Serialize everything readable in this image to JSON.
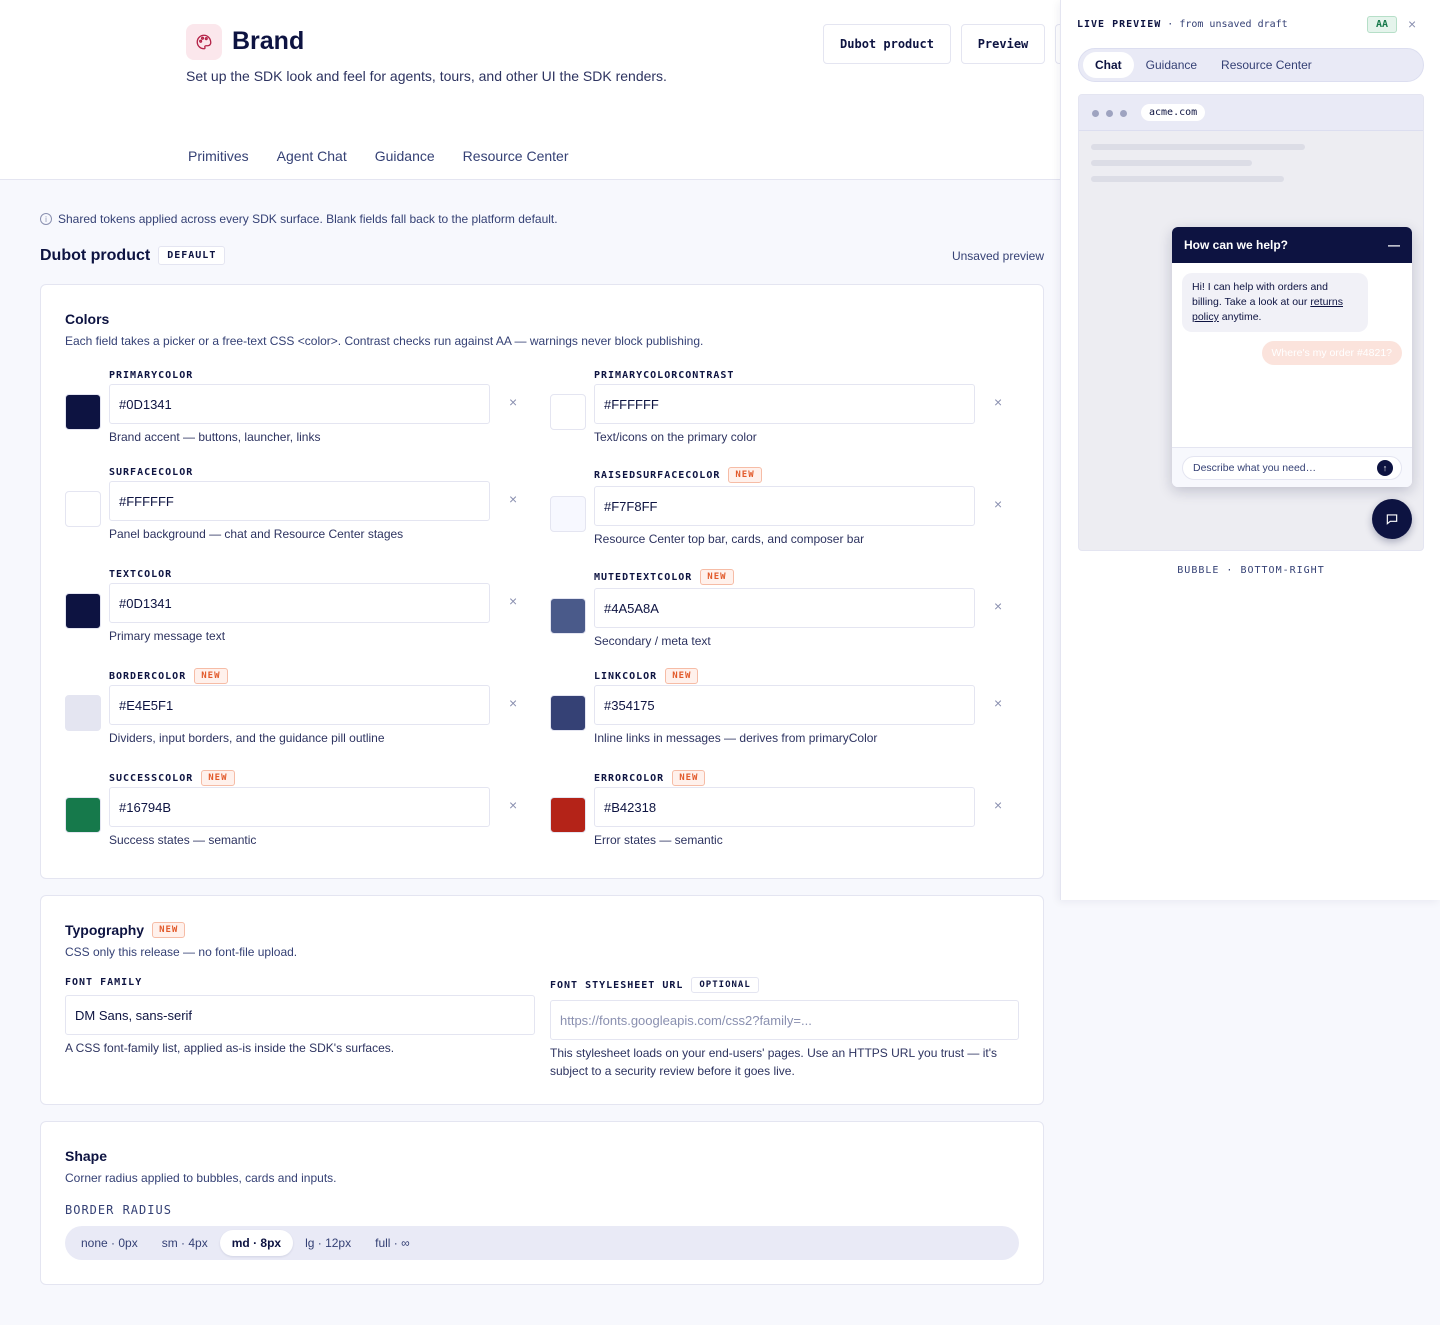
{
  "header": {
    "title": "Brand",
    "subtitle": "Set up the SDK look and feel for agents, tours, and other UI the SDK renders.",
    "buttons": [
      "Dubot product",
      "Preview"
    ],
    "icon": "palette-icon"
  },
  "tabs": [
    {
      "label": "Primitives",
      "active": true
    },
    {
      "label": "Agent Chat",
      "active": false
    },
    {
      "label": "Guidance",
      "active": false
    },
    {
      "label": "Resource Center",
      "active": false
    }
  ],
  "info_text": "Shared tokens applied across every SDK surface. Blank fields fall back to the platform default.",
  "section": {
    "name": "Dubot product",
    "badge": "DEFAULT",
    "status": "Unsaved preview"
  },
  "colors": {
    "title": "Colors",
    "subtitle": "Each field takes a picker or a free-text CSS <color>. Contrast checks run against AA — warnings never block publishing.",
    "new_label": "NEW",
    "clear_symbol": "×",
    "fields": [
      {
        "label": "PRIMARYCOLOR",
        "value": "#0D1341",
        "swatch": "#0D1341",
        "help": "Brand accent — buttons, launcher, links",
        "new": false
      },
      {
        "label": "PRIMARYCOLORCONTRAST",
        "value": "#FFFFFF",
        "swatch": "#FFFFFF",
        "help": "Text/icons on the primary color",
        "new": false
      },
      {
        "label": "SURFACECOLOR",
        "value": "#FFFFFF",
        "swatch": "#FFFFFF",
        "help": "Panel background — chat and Resource Center stages",
        "new": false
      },
      {
        "label": "RAISEDSURFACECOLOR",
        "value": "#F7F8FF",
        "swatch": "#F7F8FF",
        "help": "Resource Center top bar, cards, and composer bar",
        "new": true
      },
      {
        "label": "TEXTCOLOR",
        "value": "#0D1341",
        "swatch": "#0D1341",
        "help": "Primary message text",
        "new": false
      },
      {
        "label": "MUTEDTEXTCOLOR",
        "value": "#4A5A8A",
        "swatch": "#4A5A8A",
        "help": "Secondary / meta text",
        "new": true
      },
      {
        "label": "BORDERCOLOR",
        "value": "#E4E5F1",
        "swatch": "#E4E5F1",
        "help": "Dividers, input borders, and the guidance pill outline",
        "new": true
      },
      {
        "label": "LINKCOLOR",
        "value": "#354175",
        "swatch": "#354175",
        "help": "Inline links in messages — derives from primaryColor",
        "new": true
      },
      {
        "label": "SUCCESSCOLOR",
        "value": "#16794B",
        "swatch": "#16794B",
        "help": "Success states — semantic",
        "new": true
      },
      {
        "label": "ERRORCOLOR",
        "value": "#B42318",
        "swatch": "#B42318",
        "help": "Error states — semantic",
        "new": true
      }
    ]
  },
  "typography": {
    "title": "Typography",
    "new_label": "NEW",
    "subtitle": "CSS only this release — no font-file upload.",
    "font_family": {
      "label": "FONT FAMILY",
      "value": "DM Sans, sans-serif",
      "help": "A CSS font-family list, applied as-is inside the SDK's surfaces."
    },
    "stylesheet": {
      "label": "FONT STYLESHEET URL",
      "badge": "OPTIONAL",
      "placeholder": "https://fonts.googleapis.com/css2?family=...",
      "help": "This stylesheet loads on your end-users' pages. Use an HTTPS URL you trust — it's subject to a security review before it goes live."
    }
  },
  "shape": {
    "title": "Shape",
    "subtitle": "Corner radius applied to bubbles, cards and inputs.",
    "label": "BORDER RADIUS",
    "options": [
      {
        "label": "none · 0px",
        "selected": false
      },
      {
        "label": "sm · 4px",
        "selected": false
      },
      {
        "label": "md · 8px",
        "selected": true
      },
      {
        "label": "lg · 12px",
        "selected": false
      },
      {
        "label": "full · ∞",
        "selected": false
      }
    ]
  },
  "preview": {
    "title": "LIVE PREVIEW",
    "title_suffix": "· from unsaved draft",
    "contrast_badge": "AA",
    "close": "×",
    "tabs": [
      {
        "label": "Chat",
        "selected": true
      },
      {
        "label": "Guidance",
        "selected": false
      },
      {
        "label": "Resource Center",
        "selected": false
      }
    ],
    "url": "acme.com",
    "chat_header": "How can we help?",
    "minimize": "—",
    "bot_message_pre": "Hi! I can help with orders and billing. Take a look at our",
    "bot_message_link": "returns policy",
    "bot_message_post": "anytime.",
    "user_message": "Where's my order #4821?",
    "composer_placeholder": "Describe what you need…",
    "send_icon": "↑",
    "footer": "BUBBLE · BOTTOM-RIGHT"
  }
}
